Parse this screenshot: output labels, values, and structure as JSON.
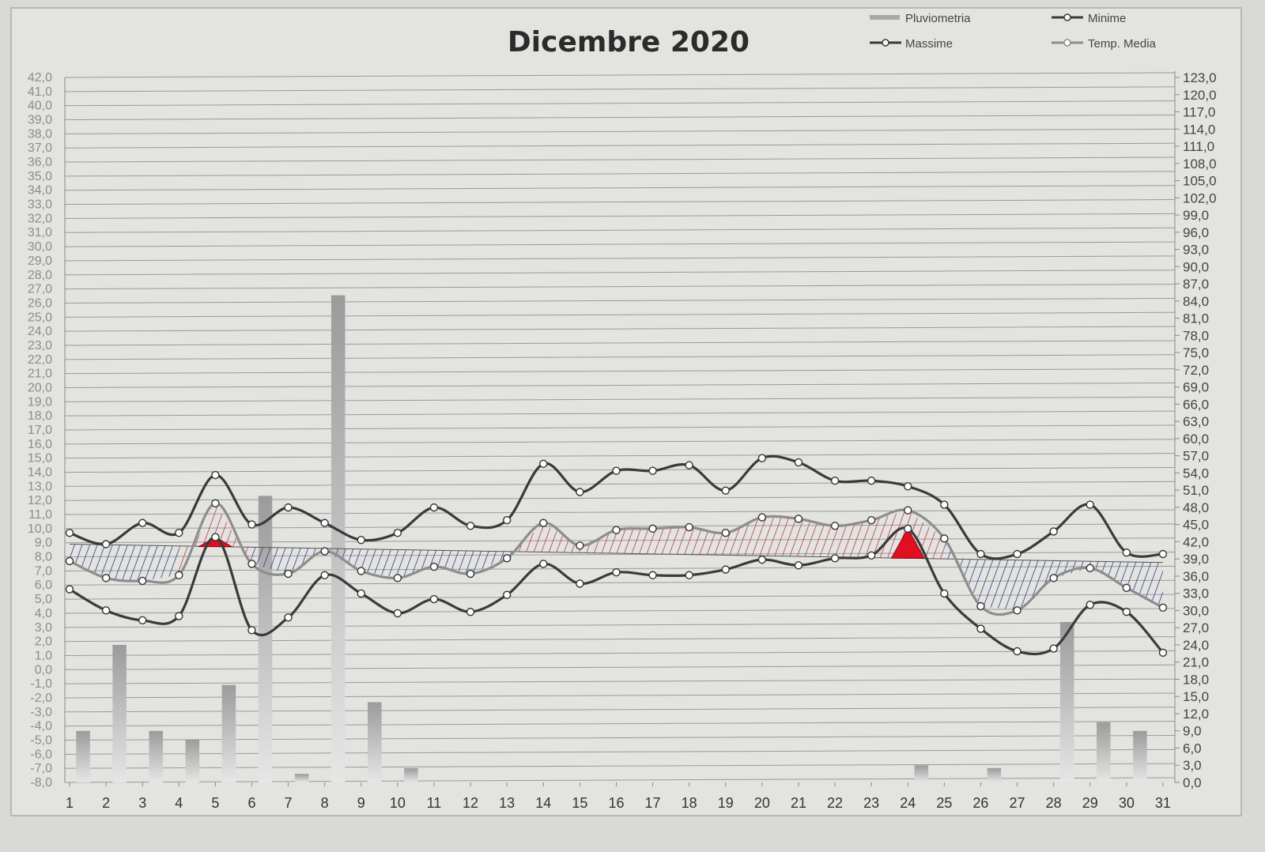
{
  "chart_data": {
    "type": "line",
    "title": "Dicembre 2020",
    "x": [
      1,
      2,
      3,
      4,
      5,
      6,
      7,
      8,
      9,
      10,
      11,
      12,
      13,
      14,
      15,
      16,
      17,
      18,
      19,
      20,
      21,
      22,
      23,
      24,
      25,
      26,
      27,
      28,
      29,
      30,
      31
    ],
    "y_left_ticks": [
      "42,0",
      "41,0",
      "40,0",
      "39,0",
      "38,0",
      "37,0",
      "36,0",
      "35,0",
      "34,0",
      "33,0",
      "32,0",
      "31,0",
      "30,0",
      "29,0",
      "28,0",
      "27,0",
      "26,0",
      "25,0",
      "24,0",
      "23,0",
      "22,0",
      "21,0",
      "20,0",
      "19,0",
      "18,0",
      "17,0",
      "16,0",
      "15,0",
      "14,0",
      "13,0",
      "12,0",
      "11,0",
      "10,0",
      "9,0",
      "8,0",
      "7,0",
      "6,0",
      "5,0",
      "4,0",
      "3,0",
      "2,0",
      "1,0",
      "0,0",
      "-1,0",
      "-2,0",
      "-3,0",
      "-4,0",
      "-5,0",
      "-6,0",
      "-7,0",
      "-8,0"
    ],
    "y_right_ticks": [
      "123,0",
      "120,0",
      "117,0",
      "114,0",
      "111,0",
      "108,0",
      "105,0",
      "102,0",
      "99,0",
      "96,0",
      "93,0",
      "90,0",
      "87,0",
      "84,0",
      "81,0",
      "78,0",
      "75,0",
      "72,0",
      "69,0",
      "66,0",
      "63,0",
      "60,0",
      "57,0",
      "54,0",
      "51,0",
      "48,0",
      "45,0",
      "42,0",
      "39,0",
      "36,0",
      "33,0",
      "30,0",
      "27,0",
      "24,0",
      "21,0",
      "18,0",
      "15,0",
      "12,0",
      "9,0",
      "6,0",
      "3,0",
      "0,0"
    ],
    "ylim_left": [
      -8,
      42
    ],
    "ylim_right": [
      0,
      123
    ],
    "legend": "top-right",
    "series": [
      {
        "name": "Massime",
        "axis": "left",
        "color": "#3a3a3a",
        "values": [
          9.7,
          8.9,
          10.4,
          9.7,
          13.8,
          10.3,
          11.5,
          10.4,
          9.2,
          9.7,
          11.5,
          10.2,
          10.6,
          14.6,
          12.6,
          14.1,
          14.1,
          14.5,
          12.7,
          15.0,
          14.7,
          13.4,
          13.4,
          13.0,
          11.7,
          8.2,
          8.2,
          9.8,
          11.7,
          8.3,
          8.2
        ]
      },
      {
        "name": "Minime",
        "axis": "left",
        "color": "#3a3a3a",
        "values": [
          5.7,
          4.2,
          3.5,
          3.8,
          9.4,
          2.8,
          3.7,
          6.7,
          5.4,
          4.0,
          5.0,
          4.1,
          5.3,
          7.5,
          6.1,
          6.9,
          6.7,
          6.7,
          7.1,
          7.8,
          7.4,
          7.9,
          8.1,
          10.0,
          5.4,
          2.9,
          1.3,
          1.5,
          4.6,
          4.1,
          1.2
        ]
      },
      {
        "name": "Temp. Media",
        "axis": "left",
        "color": "#8d8d8d",
        "values": [
          7.7,
          6.5,
          6.3,
          6.7,
          11.8,
          7.5,
          6.8,
          8.4,
          7.0,
          6.5,
          7.3,
          6.8,
          7.9,
          10.4,
          8.8,
          9.9,
          10.0,
          10.1,
          9.7,
          10.8,
          10.7,
          10.2,
          10.6,
          11.3,
          9.3,
          4.5,
          4.2,
          6.5,
          7.2,
          5.8,
          4.4
        ]
      },
      {
        "name": "Pluviometria",
        "axis": "right",
        "color": "#a9a9a9",
        "type": "bar",
        "values": [
          9.0,
          24.0,
          9.0,
          7.5,
          17.0,
          50.0,
          1.5,
          85.0,
          14.0,
          2.5,
          0,
          0,
          0,
          0,
          0,
          0,
          0,
          0,
          0,
          0,
          0,
          0,
          0,
          3.0,
          0,
          2.5,
          0,
          28.0,
          10.5,
          9.0,
          0
        ]
      }
    ]
  },
  "legend_items": {
    "pluviometria": "Pluviometria",
    "minime": "Minime",
    "massime": "Massime",
    "media": "Temp. Media"
  },
  "colors": {
    "background": "#d9dad6",
    "grid": "#9a9a9a",
    "hatch_above": "#c0364a",
    "hatch_below": "#2b3a8f",
    "highlight": "#e01020"
  }
}
